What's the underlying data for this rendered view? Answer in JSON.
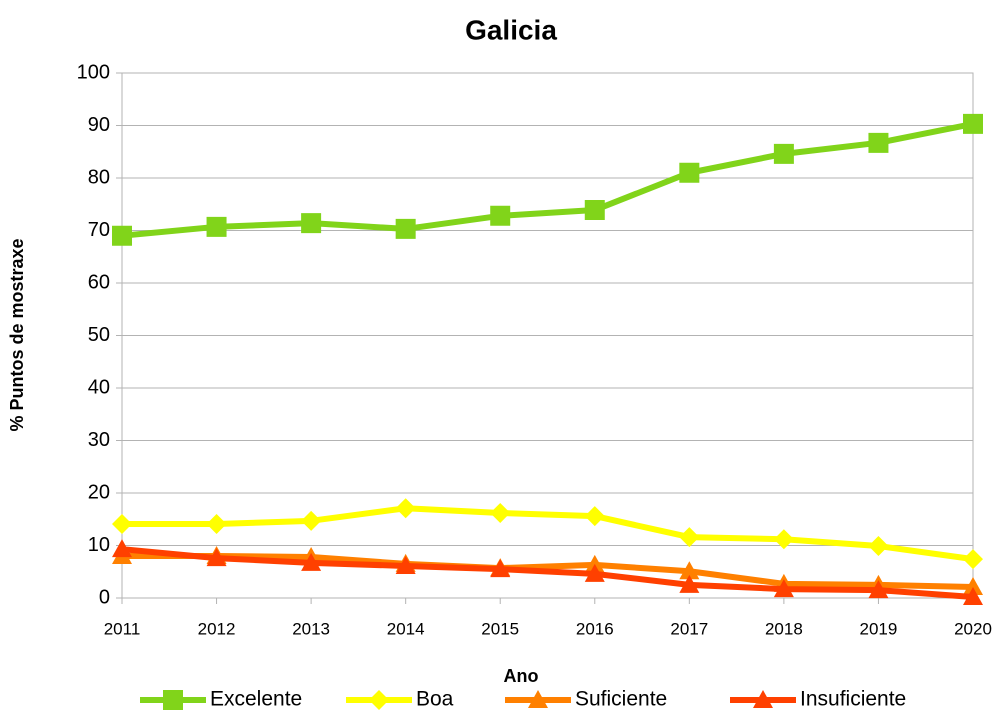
{
  "chart_data": {
    "type": "line",
    "title": "Galicia",
    "x_label": "Ano",
    "y_label": "% Puntos de mostraxe",
    "categories": [
      "2011",
      "2012",
      "2013",
      "2014",
      "2015",
      "2016",
      "2017",
      "2018",
      "2019",
      "2020"
    ],
    "series": [
      {
        "name": "Excelente",
        "color": "#81d41a",
        "marker": "square",
        "values": [
          69.0,
          70.7,
          71.4,
          70.3,
          72.8,
          73.9,
          81.0,
          84.6,
          86.7,
          90.3
        ]
      },
      {
        "name": "Boa",
        "color": "#ffff00",
        "marker": "diamond",
        "values": [
          14.1,
          14.1,
          14.7,
          17.1,
          16.2,
          15.6,
          11.6,
          11.2,
          9.9,
          7.4
        ]
      },
      {
        "name": "Suficiente",
        "color": "#ff8000",
        "marker": "triangle",
        "values": [
          8.0,
          8.0,
          7.8,
          6.5,
          5.7,
          6.3,
          5.1,
          2.7,
          2.5,
          2.1
        ]
      },
      {
        "name": "Insuficiente",
        "color": "#ff4000",
        "marker": "triangle",
        "values": [
          9.3,
          7.6,
          6.7,
          6.1,
          5.5,
          4.6,
          2.5,
          1.7,
          1.5,
          0.2
        ]
      }
    ],
    "ylim": [
      0,
      100
    ],
    "yticks": [
      0,
      10,
      20,
      30,
      40,
      50,
      60,
      70,
      80,
      90,
      100
    ],
    "grid": true,
    "legend": "bottom"
  }
}
